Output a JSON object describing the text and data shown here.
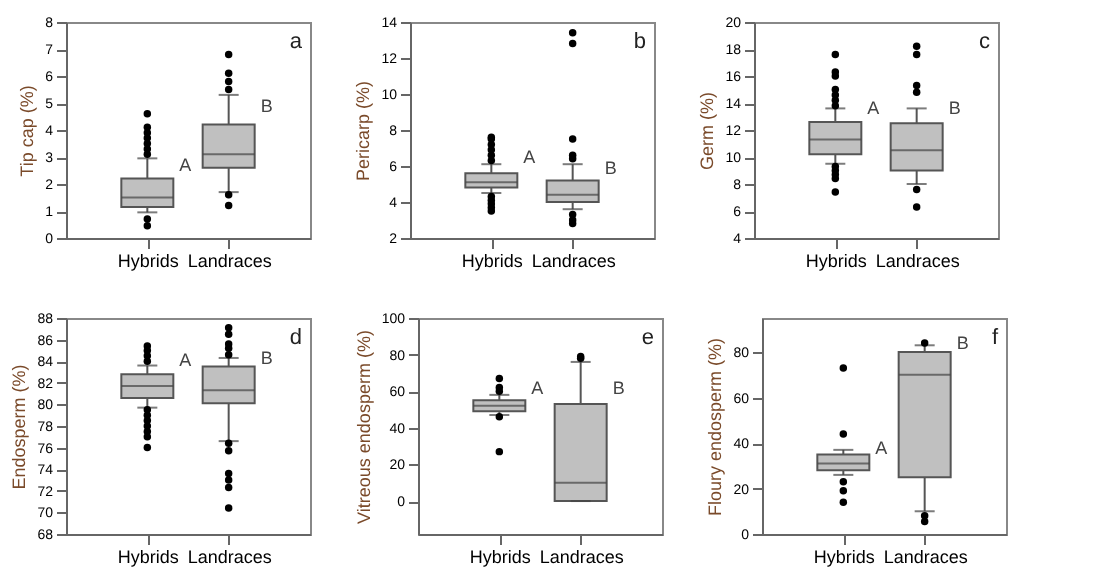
{
  "chart_data": [
    {
      "type": "box",
      "ylabel": "Tip cap (%)",
      "categories": [
        "Hybrids",
        "Landraces"
      ],
      "color": "#c0c0c0",
      "ylim": [
        0,
        8
      ],
      "yticks": [
        0,
        1,
        2,
        3,
        4,
        5,
        6,
        7,
        8
      ],
      "boxes": [
        {
          "low": 0.95,
          "q1": 1.15,
          "median": 1.5,
          "q3": 2.2,
          "high": 2.95,
          "outliers": [
            0.45,
            0.7,
            3.1,
            3.3,
            3.5,
            3.7,
            3.9,
            4.1,
            4.6
          ]
        },
        {
          "low": 1.7,
          "q1": 2.6,
          "median": 3.1,
          "q3": 4.2,
          "high": 5.3,
          "outliers": [
            1.2,
            1.6,
            5.5,
            5.8,
            6.1,
            6.8
          ]
        }
      ],
      "annotations": [
        "a",
        {
          "text": "A",
          "x": "Hybrids",
          "y": 2.7
        },
        {
          "text": "B",
          "x": "Landraces",
          "y": 4.9
        }
      ]
    },
    {
      "type": "box",
      "ylabel": "Pericarp (%)",
      "categories": [
        "Hybrids",
        "Landraces"
      ],
      "color": "#c0c0c0",
      "ylim": [
        2,
        14
      ],
      "yticks": [
        2,
        4,
        6,
        8,
        10,
        12,
        14
      ],
      "boxes": [
        {
          "low": 4.5,
          "q1": 4.8,
          "median": 5.1,
          "q3": 5.6,
          "high": 6.1,
          "outliers": [
            3.5,
            3.7,
            3.9,
            4.1,
            4.3,
            6.3,
            6.6,
            6.9,
            7.2,
            7.5,
            7.6
          ]
        },
        {
          "low": 3.6,
          "q1": 4.0,
          "median": 4.4,
          "q3": 5.2,
          "high": 6.1,
          "outliers": [
            2.8,
            3.0,
            3.3,
            6.4,
            6.6,
            7.5,
            12.8,
            13.4
          ]
        }
      ],
      "annotations": [
        "b",
        {
          "text": "A",
          "x": "Hybrids",
          "y": 6.5
        },
        {
          "text": "B",
          "x": "Landraces",
          "y": 5.9
        }
      ]
    },
    {
      "type": "box",
      "ylabel": "Germ (%)",
      "categories": [
        "Hybrids",
        "Landraces"
      ],
      "color": "#c0c0c0",
      "ylim": [
        4,
        20
      ],
      "yticks": [
        4,
        6,
        8,
        10,
        12,
        14,
        16,
        18,
        20
      ],
      "boxes": [
        {
          "low": 9.5,
          "q1": 10.2,
          "median": 11.3,
          "q3": 12.6,
          "high": 13.6,
          "outliers": [
            7.4,
            8.4,
            8.7,
            9.0,
            9.3,
            13.8,
            14.2,
            14.6,
            15.0,
            16.0,
            16.3,
            17.6
          ]
        },
        {
          "low": 8.0,
          "q1": 9.0,
          "median": 10.5,
          "q3": 12.5,
          "high": 13.6,
          "outliers": [
            6.3,
            7.6,
            14.8,
            15.3,
            17.6,
            18.2
          ]
        }
      ],
      "annotations": [
        "c",
        {
          "text": "A",
          "x": "Hybrids",
          "y": 13.6
        },
        {
          "text": "B",
          "x": "Landraces",
          "y": 13.6
        }
      ]
    },
    {
      "type": "box",
      "ylabel": "Endosperm (%)",
      "categories": [
        "Hybrids",
        "Landraces"
      ],
      "color": "#c0c0c0",
      "ylim": [
        68,
        88
      ],
      "yticks": [
        68,
        70,
        72,
        74,
        76,
        78,
        80,
        82,
        84,
        86,
        88
      ],
      "boxes": [
        {
          "low": 79.7,
          "q1": 80.6,
          "median": 81.7,
          "q3": 82.8,
          "high": 83.6,
          "outliers": [
            76.0,
            77.0,
            77.5,
            78.0,
            78.5,
            79.0,
            79.5,
            84.0,
            84.5,
            85.0,
            85.4
          ]
        },
        {
          "low": 76.6,
          "q1": 80.1,
          "median": 81.3,
          "q3": 83.5,
          "high": 84.3,
          "outliers": [
            70.4,
            72.3,
            73.0,
            73.6,
            75.7,
            76.4,
            84.6,
            85.2,
            85.6,
            86.5,
            87.1
          ]
        }
      ],
      "annotations": [
        "d",
        {
          "text": "A",
          "x": "Hybrids",
          "y": 84.1
        },
        {
          "text": "B",
          "x": "Landraces",
          "y": 84.3
        }
      ]
    },
    {
      "type": "box",
      "ylabel": "Vitreous endosperm (%)",
      "categories": [
        "Hybrids",
        "Landraces"
      ],
      "color": "#c0c0c0",
      "ylim": [
        -18,
        100
      ],
      "yticks": [
        0,
        20,
        40,
        60,
        80,
        100
      ],
      "boxes": [
        {
          "low": 47,
          "q1": 49,
          "median": 52,
          "q3": 55,
          "high": 58,
          "outliers": [
            27,
            46,
            60,
            62,
            67
          ]
        },
        {
          "low": 0,
          "q1": 0,
          "median": 10,
          "q3": 53,
          "high": 76,
          "outliers": [
            78,
            79
          ]
        }
      ],
      "annotations": [
        "e",
        {
          "text": "A",
          "x": "Hybrids",
          "y": 62
        },
        {
          "text": "B",
          "x": "Landraces",
          "y": 62
        }
      ]
    },
    {
      "type": "box",
      "ylabel": "Floury endosperm (%)",
      "categories": [
        "Hybrids",
        "Landraces"
      ],
      "color": "#c0c0c0",
      "ylim": [
        0,
        95
      ],
      "yticks": [
        0,
        20,
        40,
        60,
        80
      ],
      "boxes": [
        {
          "low": 26,
          "q1": 28,
          "median": 31,
          "q3": 35,
          "high": 37,
          "outliers": [
            14,
            19,
            23,
            44,
            73
          ]
        },
        {
          "low": 10,
          "q1": 25,
          "median": 70,
          "q3": 80,
          "high": 83,
          "outliers": [
            5.5,
            8,
            84
          ]
        }
      ],
      "annotations": [
        "f",
        {
          "text": "A",
          "x": "Hybrids",
          "y": 38
        },
        {
          "text": "B",
          "x": "Landraces",
          "y": 84
        }
      ]
    }
  ]
}
